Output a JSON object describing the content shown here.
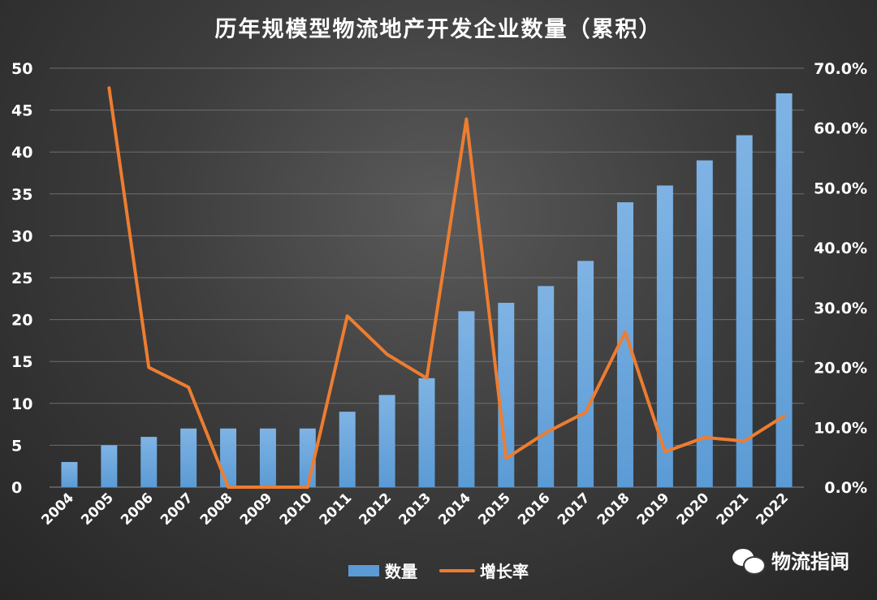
{
  "chart_data": {
    "type": "bar",
    "title": "历年规模型物流地产开发企业数量（累积）",
    "categories": [
      "2004",
      "2005",
      "2006",
      "2007",
      "2008",
      "2009",
      "2010",
      "2011",
      "2012",
      "2013",
      "2014",
      "2015",
      "2016",
      "2017",
      "2018",
      "2019",
      "2020",
      "2021",
      "2022"
    ],
    "series": [
      {
        "name": "数量",
        "type": "bar",
        "axis": "left",
        "color": "#5b9bd5",
        "values": [
          3,
          5,
          6,
          7,
          7,
          7,
          7,
          9,
          11,
          13,
          21,
          22,
          24,
          27,
          34,
          36,
          39,
          42,
          47
        ]
      },
      {
        "name": "增长率",
        "type": "line",
        "axis": "right",
        "color": "#ed7d31",
        "values": [
          null,
          66.7,
          20.0,
          16.7,
          0.0,
          0.0,
          0.0,
          28.6,
          22.2,
          18.2,
          61.5,
          4.8,
          9.1,
          12.5,
          25.9,
          5.9,
          8.3,
          7.7,
          11.9
        ]
      }
    ],
    "yleft": {
      "min": 0,
      "max": 50,
      "ticks": [
        "0",
        "5",
        "10",
        "15",
        "20",
        "25",
        "30",
        "35",
        "40",
        "45",
        "50"
      ]
    },
    "yright": {
      "min": 0,
      "max": 70,
      "ticks": [
        "0.0%",
        "10.0%",
        "20.0%",
        "30.0%",
        "40.0%",
        "50.0%",
        "60.0%",
        "70.0%"
      ]
    },
    "grid": true,
    "legend": "bottom"
  },
  "watermark": {
    "text": "物流指闻",
    "icon": "wechat-icon"
  }
}
